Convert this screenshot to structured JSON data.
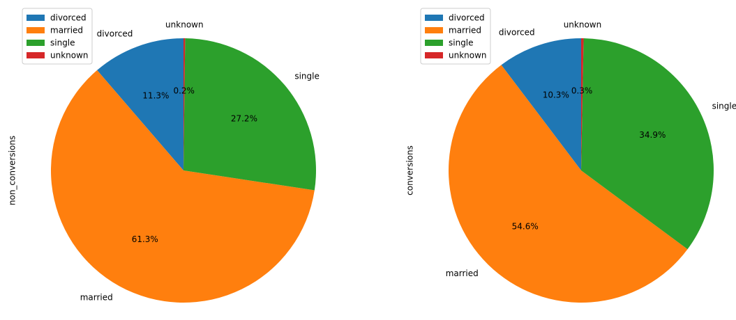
{
  "chart_data": [
    {
      "type": "pie",
      "ylabel": "non_conversions",
      "categories": [
        "divorced",
        "married",
        "single",
        "unknown"
      ],
      "values": [
        11.3,
        61.3,
        27.2,
        0.2
      ],
      "value_labels": [
        "11.3%",
        "61.3%",
        "27.2%",
        "0.2%"
      ],
      "colors": [
        "#1f77b4",
        "#ff7f0e",
        "#2ca02c",
        "#d62728"
      ],
      "start_angle_deg": 90,
      "direction": "counterclockwise",
      "legend": {
        "placement": "upper-left",
        "entries": [
          "divorced",
          "married",
          "single",
          "unknown"
        ]
      }
    },
    {
      "type": "pie",
      "ylabel": "conversions",
      "categories": [
        "divorced",
        "married",
        "single",
        "unknown"
      ],
      "values": [
        10.3,
        54.6,
        34.9,
        0.3
      ],
      "value_labels": [
        "10.3%",
        "54.6%",
        "34.9%",
        "0.3%"
      ],
      "colors": [
        "#1f77b4",
        "#ff7f0e",
        "#2ca02c",
        "#d62728"
      ],
      "start_angle_deg": 90,
      "direction": "counterclockwise",
      "legend": {
        "placement": "upper-left",
        "entries": [
          "divorced",
          "married",
          "single",
          "unknown"
        ]
      }
    }
  ]
}
